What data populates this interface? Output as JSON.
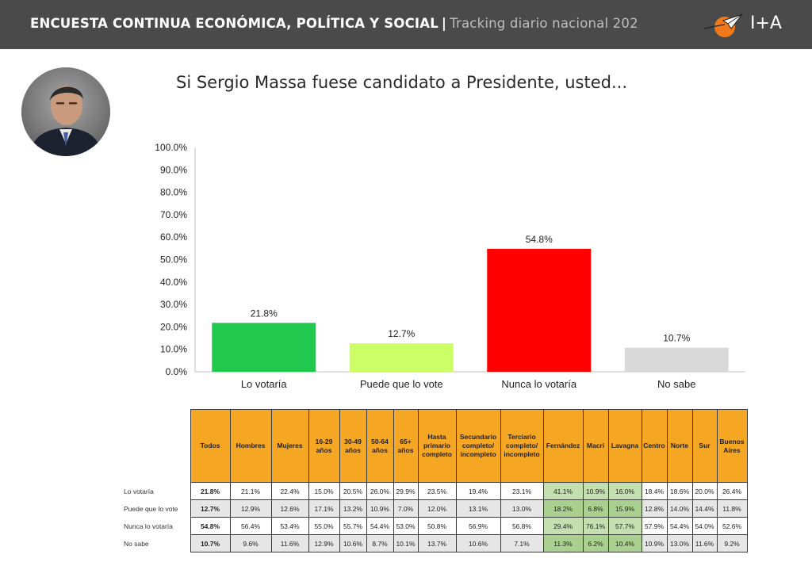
{
  "header": {
    "title_bold": "ENCUESTA CONTINUA ECONÓMICA, POLÍTICA Y SOCIAL",
    "separator": "|",
    "subtitle": "Tracking diario nacional 202",
    "logo_text": "I+A",
    "logo_icon": "paper-plane-sun-icon"
  },
  "page": {
    "title": "Si Sergio Massa fuese candidato a Presidente, usted..."
  },
  "chart_data": {
    "type": "bar",
    "categories": [
      "Lo votaría",
      "Puede que lo vote",
      "Nunca lo votaría",
      "No sabe"
    ],
    "values": [
      21.8,
      12.7,
      54.8,
      10.7
    ],
    "value_labels": [
      "21.8%",
      "12.7%",
      "54.8%",
      "10.7%"
    ],
    "colors": [
      "#21c84e",
      "#ccff66",
      "#ff0000",
      "#d9d9d9"
    ],
    "ylim": [
      0,
      100
    ],
    "yticks": [
      "0.0%",
      "10.0%",
      "20.0%",
      "30.0%",
      "40.0%",
      "50.0%",
      "60.0%",
      "70.0%",
      "80.0%",
      "90.0%",
      "100.0%"
    ],
    "title": "Si Sergio Massa fuese candidato a Presidente, usted...",
    "xlabel": "",
    "ylabel": ""
  },
  "table": {
    "headers": [
      [
        "Todos"
      ],
      [
        "Hombres"
      ],
      [
        "Mujeres"
      ],
      [
        "16-29",
        "años"
      ],
      [
        "30-49",
        "años"
      ],
      [
        "50-64",
        "años"
      ],
      [
        "65+",
        "años"
      ],
      [
        "Hasta",
        "primario",
        "completo"
      ],
      [
        "Secundario",
        "completo/",
        "incompleto"
      ],
      [
        "Terciario",
        "completo/",
        "incompleto"
      ],
      [
        "Fernández"
      ],
      [
        "Macri"
      ],
      [
        "Lavagna"
      ],
      [
        "Centro"
      ],
      [
        "Norte"
      ],
      [
        "Sur"
      ],
      [
        "Buenos",
        "Aires"
      ]
    ],
    "rows": [
      {
        "label": "Lo votaría",
        "cells": [
          "21.8%",
          "21.1%",
          "22.4%",
          "15.0%",
          "20.5%",
          "26.0%",
          "29.9%",
          "23.5%",
          "19.4%",
          "23.1%",
          "41.1%",
          "10.9%",
          "16.0%",
          "18.4%",
          "18.6%",
          "20.0%",
          "26.4%"
        ]
      },
      {
        "label": "Puede que lo vote",
        "cells": [
          "12.7%",
          "12.9%",
          "12.6%",
          "17.1%",
          "13.2%",
          "10.9%",
          "7.0%",
          "12.0%",
          "13.1%",
          "13.0%",
          "18.2%",
          "6.8%",
          "15.9%",
          "12.8%",
          "14.0%",
          "14.4%",
          "11.8%"
        ]
      },
      {
        "label": "Nunca lo votaría",
        "cells": [
          "54.8%",
          "56.4%",
          "53.4%",
          "55.0%",
          "55.7%",
          "54.4%",
          "53.0%",
          "50.8%",
          "56.9%",
          "56.8%",
          "29.4%",
          "76.1%",
          "57.7%",
          "57.9%",
          "54.4%",
          "54.0%",
          "52.6%"
        ]
      },
      {
        "label": "No sabe",
        "cells": [
          "10.7%",
          "9.6%",
          "11.6%",
          "12.9%",
          "10.6%",
          "8.7%",
          "10.1%",
          "13.7%",
          "10.6%",
          "7.1%",
          "11.3%",
          "6.2%",
          "10.4%",
          "10.9%",
          "13.0%",
          "11.6%",
          "9.2%"
        ]
      }
    ],
    "header_color": "#f5a623",
    "candidate_column_color": "#a9d08e"
  }
}
